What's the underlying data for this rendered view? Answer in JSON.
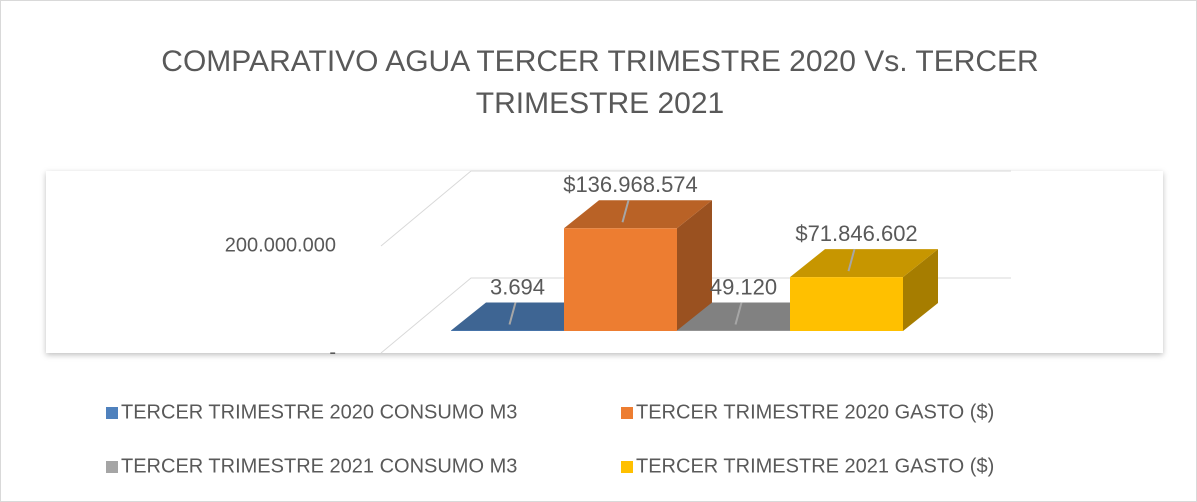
{
  "chart_data": {
    "type": "bar3d",
    "title": "COMPARATIVO AGUA TERCER TRIMESTRE 2020 Vs. TERCER TRIMESTRE 2021",
    "series": [
      {
        "name": "TERCER TRIMESTRE 2020 CONSUMO M3",
        "color": "#4f81bd",
        "values": [
          3694
        ],
        "value_labels": [
          "3.694"
        ]
      },
      {
        "name": "TERCER TRIMESTRE 2020 GASTO ($)",
        "color": "#ed7d31",
        "values": [
          136968574
        ],
        "value_labels": [
          "$136.968.574"
        ]
      },
      {
        "name": "TERCER TRIMESTRE 2021 CONSUMO M3",
        "color": "#a5a5a5",
        "values": [
          49120
        ],
        "value_labels": [
          "49.120"
        ]
      },
      {
        "name": "TERCER TRIMESTRE 2021 GASTO ($)",
        "color": "#ffc000",
        "values": [
          71846602
        ],
        "value_labels": [
          "$71.846.602"
        ]
      }
    ],
    "ylim": [
      0,
      200000000
    ],
    "yticks": [
      {
        "value": 0,
        "label": "-"
      },
      {
        "value": 200000000,
        "label": "200.000.000"
      }
    ],
    "grid": true,
    "legend": "bottom"
  }
}
